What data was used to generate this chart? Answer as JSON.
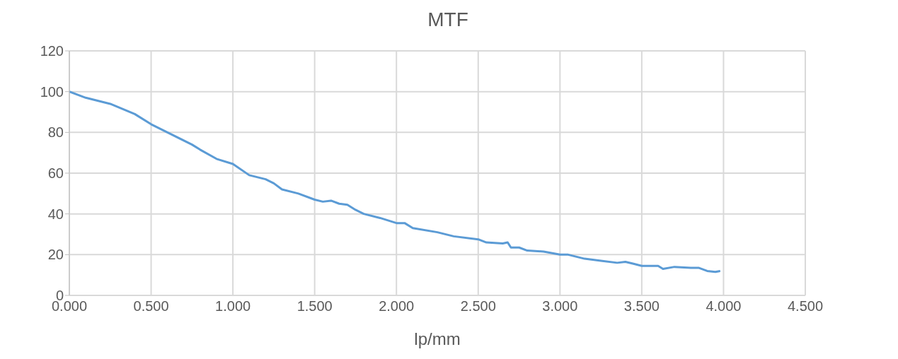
{
  "chart_data": {
    "type": "line",
    "title": "MTF",
    "xlabel": "lp/mm",
    "grid": true,
    "marker": "none",
    "line_style": "solid",
    "xlim": [
      0,
      4.5
    ],
    "xticks": [
      {
        "value": 0,
        "label": "0.000"
      },
      {
        "value": 0.5,
        "label": "0.500"
      },
      {
        "value": 1,
        "label": "1.000"
      },
      {
        "value": 1.5,
        "label": "1.500"
      },
      {
        "value": 2,
        "label": "2.000"
      },
      {
        "value": 2.5,
        "label": "2.500"
      },
      {
        "value": 3,
        "label": "3.000"
      },
      {
        "value": 3.5,
        "label": "3.500"
      },
      {
        "value": 4,
        "label": "4.000"
      },
      {
        "value": 4.5,
        "label": "4.500"
      }
    ],
    "ylim": [
      0,
      120
    ],
    "yticks": [
      0,
      20,
      40,
      60,
      80,
      100,
      120
    ],
    "x": [
      0,
      0.1,
      0.25,
      0.4,
      0.5,
      0.6,
      0.75,
      0.8,
      0.9,
      1.0,
      1.1,
      1.2,
      1.25,
      1.3,
      1.4,
      1.5,
      1.55,
      1.6,
      1.65,
      1.7,
      1.75,
      1.8,
      1.9,
      2.0,
      2.05,
      2.1,
      2.25,
      2.35,
      2.5,
      2.55,
      2.65,
      2.68,
      2.7,
      2.75,
      2.8,
      2.9,
      3.0,
      3.05,
      3.15,
      3.25,
      3.35,
      3.4,
      3.45,
      3.5,
      3.6,
      3.63,
      3.7,
      3.8,
      3.85,
      3.9,
      3.95,
      3.98
    ],
    "series": [
      {
        "color": "#5b9bd5",
        "values": [
          100,
          97,
          94,
          89,
          84,
          80,
          74,
          71.5,
          67,
          64.5,
          59,
          57,
          55,
          52,
          50,
          47,
          46,
          46.5,
          45,
          44.5,
          42,
          40,
          38,
          35.5,
          35.5,
          33,
          31,
          29,
          27.5,
          26,
          25.5,
          26,
          23.5,
          23.5,
          22,
          21.5,
          20,
          20,
          18,
          17,
          16,
          16.5,
          15.5,
          14.5,
          14.5,
          13,
          14,
          13.5,
          13.5,
          12,
          11.5,
          12
        ]
      }
    ]
  }
}
